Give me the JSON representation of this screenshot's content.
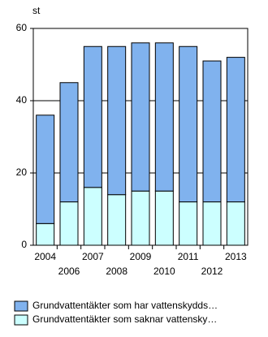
{
  "chart_data": {
    "type": "stacked-bar",
    "y_unit": "st",
    "categories": [
      "2004",
      "2006",
      "2007",
      "2008",
      "2009",
      "2010",
      "2011",
      "2012",
      "2013"
    ],
    "series": [
      {
        "name": "Grundvattentäkter som saknar vattensky…",
        "color": "#ccffff",
        "values": [
          6,
          12,
          16,
          14,
          15,
          15,
          12,
          12,
          12
        ]
      },
      {
        "name": "Grundvattentäkter som har vattenskydds…",
        "color": "#80b2ee",
        "values": [
          30,
          33,
          39,
          41,
          41,
          41,
          43,
          39,
          40
        ]
      }
    ],
    "ylim": [
      0,
      60
    ],
    "yticks": [
      0,
      20,
      40,
      60
    ],
    "grid": true
  }
}
